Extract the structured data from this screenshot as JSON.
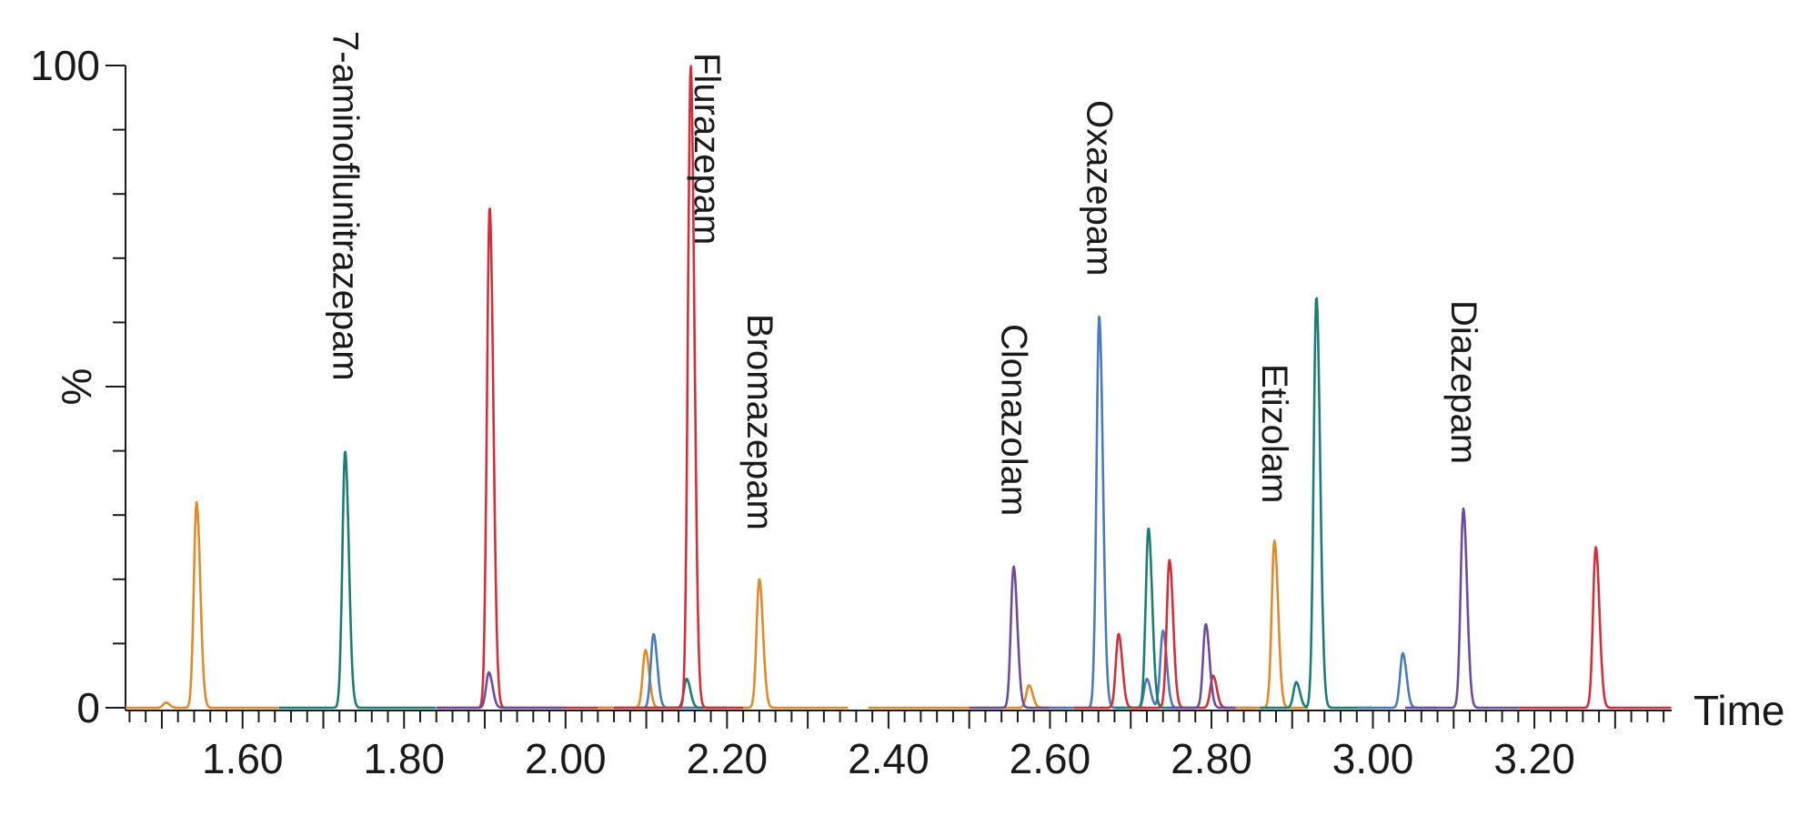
{
  "chart_data": {
    "type": "line",
    "title": "",
    "xlabel": "Time",
    "ylabel": "%",
    "xlim": [
      1.455,
      3.37
    ],
    "ylim": [
      0,
      100
    ],
    "x_ticks": [
      1.6,
      1.8,
      2.0,
      2.2,
      2.4,
      2.6,
      2.8,
      3.0,
      3.2
    ],
    "x_tick_labels": [
      "1.60",
      "1.80",
      "2.00",
      "2.20",
      "2.40",
      "2.60",
      "2.80",
      "3.00",
      "3.20"
    ],
    "y_ticks": [
      0,
      100
    ],
    "y_tick_labels": [
      "0",
      "100"
    ],
    "grid": false,
    "legend": "none",
    "colors": {
      "orange": "#e08a2c",
      "teal": "#1c7d74",
      "red": "#d32f3a",
      "purple": "#6b4e9b",
      "blue": "#4a7ab8"
    },
    "series": [
      {
        "color_key": "orange",
        "x_range": [
          1.455,
          1.645
        ],
        "peaks": [
          {
            "x": 1.543,
            "y": 32
          },
          {
            "x": 1.505,
            "y": 0.8
          }
        ]
      },
      {
        "color_key": "teal",
        "x_range": [
          1.645,
          1.84
        ],
        "peaks": [
          {
            "x": 1.727,
            "y": 40
          }
        ]
      },
      {
        "color_key": "red",
        "x_range": [
          1.84,
          2.06
        ],
        "peaks": [
          {
            "x": 1.906,
            "y": 78
          }
        ]
      },
      {
        "color_key": "purple",
        "x_range": [
          1.84,
          2.0
        ],
        "peaks": [
          {
            "x": 1.905,
            "y": 5.5
          }
        ]
      },
      {
        "color_key": "orange",
        "x_range": [
          2.04,
          2.35
        ],
        "peaks": [
          {
            "x": 2.099,
            "y": 9
          },
          {
            "x": 2.24,
            "y": 20
          }
        ]
      },
      {
        "color_key": "blue",
        "x_range": [
          2.06,
          2.17
        ],
        "peaks": [
          {
            "x": 2.109,
            "y": 11.5
          }
        ]
      },
      {
        "color_key": "teal",
        "x_range": [
          2.1,
          2.2
        ],
        "peaks": [
          {
            "x": 2.15,
            "y": 4.5
          }
        ]
      },
      {
        "color_key": "red",
        "x_range": [
          2.06,
          2.22
        ],
        "peaks": [
          {
            "x": 2.155,
            "y": 100
          }
        ]
      },
      {
        "color_key": "orange",
        "x_range": [
          2.375,
          2.62
        ],
        "peaks": [
          {
            "x": 2.574,
            "y": 3.5
          }
        ]
      },
      {
        "color_key": "purple",
        "x_range": [
          2.5,
          2.6
        ],
        "peaks": [
          {
            "x": 2.555,
            "y": 22
          }
        ]
      },
      {
        "color_key": "blue",
        "x_range": [
          2.6,
          2.78
        ],
        "peaks": [
          {
            "x": 2.661,
            "y": 61
          },
          {
            "x": 2.74,
            "y": 12
          },
          {
            "x": 2.72,
            "y": 4.5
          }
        ]
      },
      {
        "color_key": "red",
        "x_range": [
          2.63,
          2.72
        ],
        "peaks": [
          {
            "x": 2.685,
            "y": 11.5
          }
        ]
      },
      {
        "color_key": "teal",
        "x_range": [
          2.68,
          2.76
        ],
        "peaks": [
          {
            "x": 2.722,
            "y": 28
          }
        ]
      },
      {
        "color_key": "red",
        "x_range": [
          2.7,
          2.83
        ],
        "peaks": [
          {
            "x": 2.748,
            "y": 23
          },
          {
            "x": 2.802,
            "y": 5
          }
        ]
      },
      {
        "color_key": "purple",
        "x_range": [
          2.75,
          2.85
        ],
        "peaks": [
          {
            "x": 2.793,
            "y": 13
          }
        ]
      },
      {
        "color_key": "orange",
        "x_range": [
          2.83,
          2.92
        ],
        "peaks": [
          {
            "x": 2.878,
            "y": 26
          }
        ]
      },
      {
        "color_key": "teal",
        "x_range": [
          2.86,
          3.0
        ],
        "peaks": [
          {
            "x": 2.93,
            "y": 64
          },
          {
            "x": 2.905,
            "y": 4
          }
        ]
      },
      {
        "color_key": "blue",
        "x_range": [
          2.98,
          3.08
        ],
        "peaks": [
          {
            "x": 3.037,
            "y": 8.5
          }
        ]
      },
      {
        "color_key": "purple",
        "x_range": [
          3.04,
          3.18
        ],
        "peaks": [
          {
            "x": 3.112,
            "y": 31
          }
        ]
      },
      {
        "color_key": "red",
        "x_range": [
          3.18,
          3.37
        ],
        "peaks": [
          {
            "x": 3.276,
            "y": 25
          }
        ]
      }
    ],
    "annotations": [
      {
        "text": "7-aminoflunitrazepam",
        "x": 1.727
      },
      {
        "text": "Flurazepam",
        "x": 2.175
      },
      {
        "text": "Bromazepam",
        "x": 2.24
      },
      {
        "text": "Clonazolam",
        "x": 2.555
      },
      {
        "text": "Oxazepam",
        "x": 2.661
      },
      {
        "text": "Etizolam",
        "x": 2.878
      },
      {
        "text": "Diazepam",
        "x": 3.112
      }
    ]
  }
}
